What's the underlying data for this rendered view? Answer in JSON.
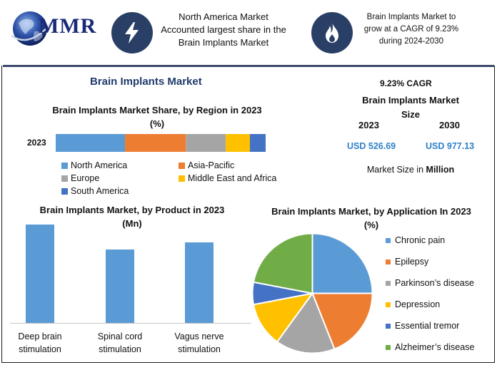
{
  "header": {
    "logo_text": "MMR",
    "highlight_1": "North America Market Accounted largest share in the Brain Implants Market",
    "highlight_2": "Brain Implants Market to grow at a CAGR of 9.23% during 2024-2030",
    "icons": [
      "lightning-icon",
      "flame-icon"
    ]
  },
  "main_title": "Brain Implants Market",
  "market_size": {
    "cagr": "9.23% CAGR",
    "title": "Brain Implants Market Size",
    "year_1": "2023",
    "year_2": "2030",
    "value_1": "USD 526.69",
    "value_2": "USD 977.13",
    "note_prefix": "Market Size in ",
    "note_unit": "Million"
  },
  "colors": {
    "blue": "#5b9bd5",
    "orange": "#ed7d31",
    "gray": "#a5a5a5",
    "yellow": "#ffc000",
    "dark_blue": "#4472c4",
    "green": "#70ad47",
    "header_circle": "#2a3f66",
    "value_blue": "#2f80c8"
  },
  "chart_data": [
    {
      "type": "bar",
      "stacked": true,
      "orientation": "horizontal",
      "title": "Brain Implants Market Share, by Region in 2023 (%)",
      "categories": [
        "2023"
      ],
      "series": [
        {
          "name": "North America",
          "values": [
            33
          ],
          "color": "#5b9bd5"
        },
        {
          "name": "Asia-Pacific",
          "values": [
            29
          ],
          "color": "#ed7d31"
        },
        {
          "name": "Europe",
          "values": [
            19
          ],
          "color": "#a5a5a5"
        },
        {
          "name": "Middle East and Africa",
          "values": [
            11.5
          ],
          "color": "#ffc000"
        },
        {
          "name": "South America",
          "values": [
            7.5
          ],
          "color": "#4472c4"
        }
      ],
      "legend_position": "bottom"
    },
    {
      "type": "bar",
      "title": "Brain Implants Market, by Product in 2023 (Mn)",
      "categories": [
        "Deep brain stimulation",
        "Spinal cord stimulation",
        "Vagus nerve stimulation"
      ],
      "values": [
        100,
        75,
        82
      ],
      "color": "#5b9bd5",
      "ylim": [
        0,
        100
      ],
      "grid": false
    },
    {
      "type": "pie",
      "title": "Brain Implants Market, by Application In 2023 (%)",
      "categories": [
        "Chronic pain",
        "Epilepsy",
        "Parkinson’s disease",
        "Depression",
        "Essential tremor",
        "Alzheimer’s disease"
      ],
      "values": [
        25,
        19,
        16,
        12,
        6,
        22
      ],
      "colors": [
        "#5b9bd5",
        "#ed7d31",
        "#a5a5a5",
        "#ffc000",
        "#4472c4",
        "#70ad47"
      ],
      "legend_position": "right"
    }
  ]
}
